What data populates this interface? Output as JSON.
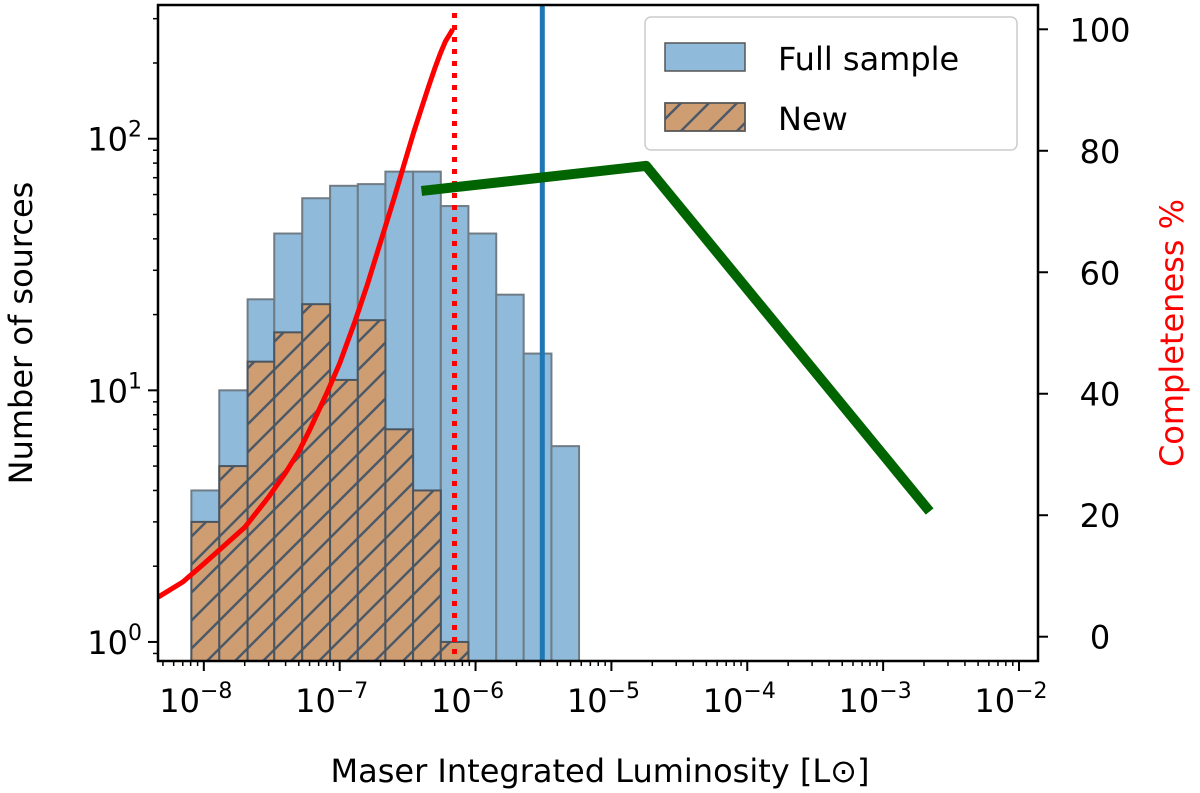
{
  "chart_data": {
    "type": "bar",
    "title": "",
    "xlabel": "Maser Integrated Luminosity [L⊙]",
    "ylabel": "Number of sources",
    "y2label": "Completeness %",
    "x_scale": "log",
    "y_scale": "log",
    "xlim": [
      4.6e-09,
      0.0138
    ],
    "ylim": [
      0.84,
      340
    ],
    "y2lim": [
      -4,
      104
    ],
    "x_tick_exponents": [
      -8,
      -7,
      -6,
      -5,
      -4,
      -3,
      -2
    ],
    "x_tick_base": "10",
    "y_tick_exponents": [
      0,
      1,
      2
    ],
    "y_tick_base": "10",
    "y2_ticks": [
      "0",
      "20",
      "40",
      "60",
      "80",
      "100"
    ],
    "legend_position": "top-right",
    "bin_edges": [
      8.1e-09,
      1.3e-08,
      2.1e-08,
      3.3e-08,
      5.3e-08,
      8.5e-08,
      1.36e-07,
      2.17e-07,
      3.47e-07,
      5.55e-07,
      8.86e-07,
      1.42e-06,
      2.26e-06,
      3.62e-06,
      5.78e-06,
      9.24e-06,
      1.48e-05,
      2.36e-05,
      3.77e-05,
      6.03e-05,
      9.63e-05,
      0.000154,
      0.000246,
      0.000393,
      0.000628,
      0.001
    ],
    "series": [
      {
        "name": "Full sample",
        "color": "#8fbada",
        "values": [
          4,
          10,
          23,
          42,
          58,
          65,
          66,
          74,
          74,
          54,
          42,
          24,
          14,
          6
        ]
      },
      {
        "name": "New",
        "color": "#cf9d72",
        "values": [
          3,
          5,
          13,
          17,
          22,
          11,
          19,
          7,
          4,
          1
        ]
      }
    ],
    "completeness_curve": {
      "color": "#ff0000",
      "points": [
        [
          4.6e-09,
          6.5
        ],
        [
          7e-09,
          9
        ],
        [
          1e-08,
          12
        ],
        [
          1.5e-08,
          15.5
        ],
        [
          2e-08,
          18
        ],
        [
          3e-08,
          23
        ],
        [
          4e-08,
          27
        ],
        [
          5e-08,
          30.5
        ],
        [
          6e-08,
          34
        ],
        [
          8e-08,
          40
        ],
        [
          1e-07,
          45
        ],
        [
          1.3e-07,
          52
        ],
        [
          1.6e-07,
          58
        ],
        [
          2e-07,
          65
        ],
        [
          2.5e-07,
          72
        ],
        [
          3e-07,
          78
        ],
        [
          3.5e-07,
          83
        ],
        [
          4e-07,
          87
        ],
        [
          4.5e-07,
          90.5
        ],
        [
          5e-07,
          93.5
        ],
        [
          5.5e-07,
          96
        ],
        [
          6e-07,
          98
        ],
        [
          6.8e-07,
          100
        ]
      ]
    },
    "completeness_limit": {
      "x": 7e-07,
      "color": "#ff0000",
      "style": "dotted"
    },
    "vertical_line": {
      "x": 3.1e-06,
      "color": "#1f77b4"
    },
    "broken_power_law": {
      "color": "#006400",
      "points": [
        [
          4e-07,
          62
        ],
        [
          1.8e-05,
          78
        ],
        [
          0.0022,
          3.3
        ]
      ]
    }
  }
}
